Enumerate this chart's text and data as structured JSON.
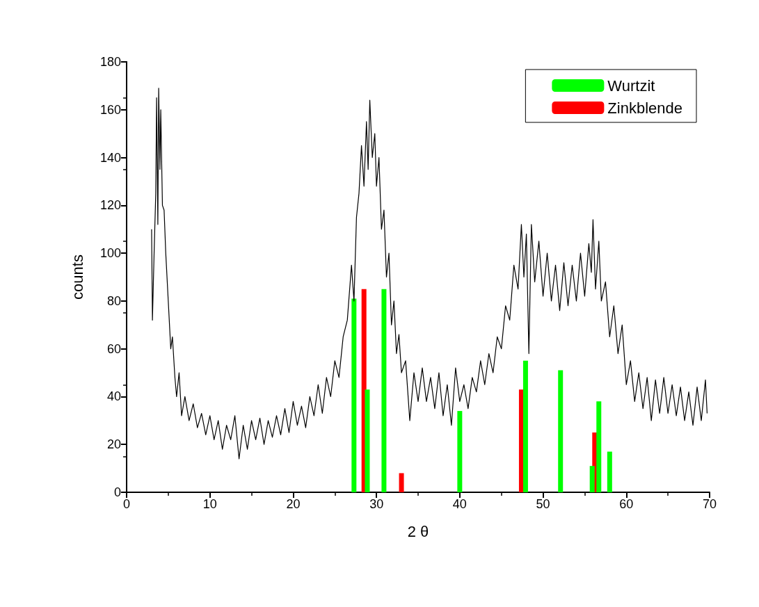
{
  "chart_data": {
    "type": "line",
    "xlabel": "2 θ",
    "ylabel": "counts",
    "xlim": [
      0,
      70
    ],
    "xticks": [
      0,
      10,
      20,
      30,
      40,
      50,
      60,
      70
    ],
    "ylim": [
      0,
      180
    ],
    "yticks": [
      0,
      20,
      40,
      60,
      80,
      100,
      120,
      140,
      160,
      180
    ],
    "legend": "top right",
    "grid": false,
    "series": [
      {
        "color": "#000000",
        "marker": "none",
        "x": [
          3.0,
          3.1,
          3.3,
          3.5,
          3.6,
          3.75,
          3.85,
          4.0,
          4.1,
          4.3,
          4.5,
          4.7,
          5.0,
          5.3,
          5.5,
          5.8,
          6.0,
          6.3,
          6.6,
          7.0,
          7.5,
          8,
          8.5,
          9,
          9.5,
          10,
          10.5,
          11,
          11.5,
          12,
          12.5,
          13,
          13.5,
          14,
          14.5,
          15,
          15.5,
          16,
          16.5,
          17,
          17.5,
          18,
          18.5,
          19,
          19.5,
          20,
          20.5,
          21,
          21.5,
          22,
          22.5,
          23,
          23.5,
          24,
          24.5,
          25,
          25.5,
          26,
          26.5,
          27,
          27.3,
          27.6,
          27.9,
          28.2,
          28.5,
          28.8,
          29.0,
          29.2,
          29.5,
          29.8,
          30.0,
          30.3,
          30.6,
          30.9,
          31.2,
          31.5,
          31.8,
          32.1,
          32.4,
          32.7,
          33,
          33.5,
          34,
          34.5,
          35,
          35.5,
          36,
          36.5,
          37,
          37.5,
          38,
          38.5,
          39,
          39.5,
          40,
          40.5,
          41,
          41.5,
          42,
          42.5,
          43,
          43.5,
          44,
          44.5,
          45,
          45.5,
          46,
          46.5,
          47,
          47.4,
          47.7,
          48,
          48.3,
          48.6,
          49,
          49.5,
          50,
          50.5,
          51,
          51.5,
          52,
          52.5,
          53,
          53.5,
          54,
          54.5,
          55,
          55.5,
          55.8,
          56.0,
          56.3,
          56.7,
          57,
          57.5,
          58,
          58.5,
          59,
          59.5,
          60,
          60.5,
          61,
          61.5,
          62,
          62.5,
          63,
          63.5,
          64,
          64.5,
          65,
          65.5,
          66,
          66.5,
          67,
          67.5,
          68,
          68.5,
          69,
          69.5,
          69.7
        ],
        "values": [
          110,
          72,
          100,
          125,
          165,
          112,
          169,
          135,
          160,
          120,
          118,
          100,
          80,
          60,
          65,
          48,
          40,
          50,
          32,
          40,
          30,
          37,
          27,
          33,
          24,
          32,
          22,
          30,
          18,
          28,
          22,
          32,
          14,
          28,
          18,
          30,
          22,
          31,
          20,
          30,
          23,
          32,
          24,
          35,
          25,
          38,
          28,
          36,
          27,
          40,
          32,
          45,
          33,
          48,
          40,
          55,
          48,
          65,
          72,
          95,
          80,
          115,
          125,
          145,
          128,
          155,
          135,
          164,
          140,
          150,
          128,
          140,
          110,
          118,
          90,
          100,
          70,
          80,
          58,
          66,
          50,
          55,
          30,
          50,
          38,
          52,
          38,
          48,
          35,
          50,
          32,
          45,
          28,
          52,
          38,
          45,
          35,
          48,
          42,
          55,
          45,
          58,
          50,
          65,
          60,
          78,
          72,
          95,
          85,
          112,
          90,
          108,
          58,
          112,
          88,
          105,
          82,
          100,
          80,
          95,
          76,
          96,
          78,
          95,
          80,
          100,
          82,
          104,
          92,
          114,
          85,
          105,
          80,
          88,
          65,
          78,
          58,
          70,
          45,
          55,
          38,
          50,
          35,
          48,
          30,
          47,
          33,
          48,
          33,
          45,
          32,
          44,
          30,
          42,
          28,
          44,
          30,
          47,
          33
        ]
      },
      {
        "type": "bar",
        "name": "Wurtzit",
        "color": "#00ff00",
        "x": [
          27.3,
          28.9,
          30.9,
          40.0,
          47.9,
          52.1,
          55.9,
          56.7,
          58.0
        ],
        "values": [
          81,
          43,
          85,
          34,
          55,
          51,
          11,
          38,
          17
        ]
      },
      {
        "type": "bar",
        "name": "Zinkblende",
        "color": "#ff0000",
        "x": [
          28.5,
          33.0,
          47.4,
          56.2
        ],
        "values": [
          85,
          8,
          43,
          25
        ]
      }
    ]
  }
}
